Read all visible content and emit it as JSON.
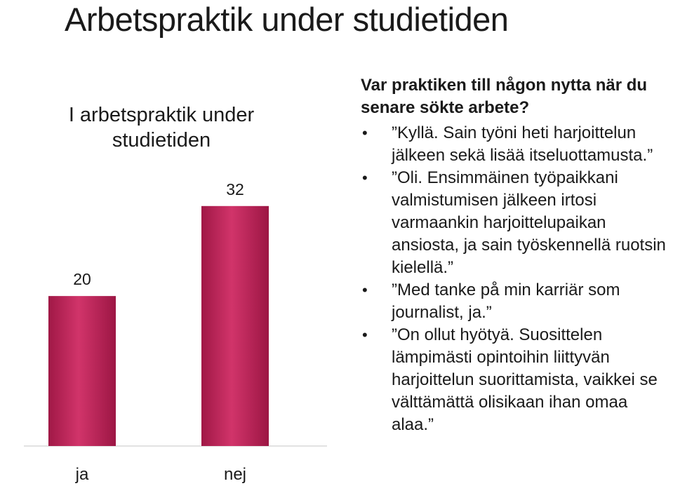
{
  "page": {
    "title": "Arbetspraktik under studietiden"
  },
  "chart_data": {
    "type": "bar",
    "title": "I arbetspraktik under studietiden",
    "categories": [
      "ja",
      "nej"
    ],
    "values": [
      20,
      32
    ],
    "ylim": [
      0,
      34.6
    ],
    "xlabel": "",
    "ylabel": "",
    "grid": false,
    "bar_color": "#c72459",
    "data_labels": [
      "20",
      "32"
    ]
  },
  "panel": {
    "question": "Var praktiken till någon nytta när du senare sökte arbete?",
    "bullets": [
      "”Kyllä. Sain työni heti harjoittelun jälkeen sekä lisää itseluottamusta.”",
      "”Oli. Ensimmäinen työpaikkani valmistumisen jälkeen irtosi varmaankin harjoittelupaikan ansiosta, ja sain työskennellä ruotsin kielellä.”",
      "”Med tanke på min karriär som journalist, ja.”",
      "”On ollut hyötyä. Suosittelen lämpimästi opintoihin liittyvän harjoittelun suorittamista, vaikkei se välttämättä olisikaan ihan omaa alaa.”"
    ]
  }
}
